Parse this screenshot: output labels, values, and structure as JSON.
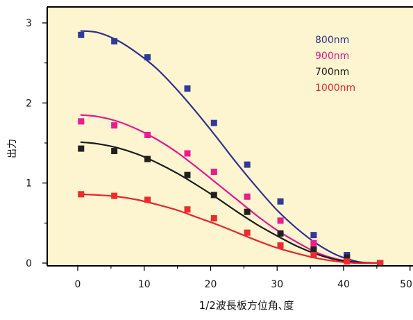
{
  "chart_data": {
    "type": "scatter",
    "xlabel": "1/2波長板方位角､度",
    "ylabel": "出力",
    "xlim": [
      -5,
      50
    ],
    "ylim": [
      -0.1,
      3.2
    ],
    "x_ticks": [
      0,
      10,
      20,
      30,
      40,
      50
    ],
    "y_ticks": [
      0,
      1,
      2,
      3
    ],
    "x_minor_ticks": [
      5,
      15,
      25,
      35,
      45
    ],
    "y_minor_ticks": [
      0.5,
      1.5,
      2.5
    ],
    "grid": false,
    "legend_position": "top-right",
    "background_color": "#fdf5cf",
    "x": [
      0.5,
      5.5,
      10.5,
      16.5,
      20.5,
      25.5,
      30.5,
      35.5,
      40.5,
      45.5
    ],
    "series": [
      {
        "name": "800nm",
        "color": "#2f2f8f",
        "marker_color": "#2f3a9a",
        "values": [
          2.85,
          2.77,
          2.57,
          2.18,
          1.75,
          1.23,
          0.77,
          0.35,
          0.1,
          0.0
        ],
        "fit": {
          "x": [
            0.5,
            3,
            6,
            9,
            12,
            15,
            18,
            21,
            24,
            27,
            30,
            33,
            36,
            39,
            42,
            44,
            45.5
          ],
          "y": [
            2.9,
            2.88,
            2.78,
            2.62,
            2.42,
            2.16,
            1.87,
            1.56,
            1.24,
            0.94,
            0.66,
            0.43,
            0.24,
            0.1,
            0.02,
            0.0,
            0.0
          ]
        }
      },
      {
        "name": "900nm",
        "color": "#e8158c",
        "marker_color": "#ec1b8e",
        "values": [
          1.77,
          1.72,
          1.6,
          1.37,
          1.14,
          0.83,
          0.53,
          0.25,
          0.07,
          0.0
        ],
        "fit": {
          "x": [
            0.5,
            3,
            6,
            9,
            12,
            15,
            18,
            21,
            24,
            27,
            30,
            33,
            36,
            39,
            42,
            45.5
          ],
          "y": [
            1.85,
            1.83,
            1.77,
            1.67,
            1.54,
            1.38,
            1.19,
            0.99,
            0.79,
            0.59,
            0.41,
            0.26,
            0.13,
            0.05,
            0.01,
            0.0
          ]
        }
      },
      {
        "name": "700nm",
        "color": "#1a1a1a",
        "marker_color": "#231f20",
        "values": [
          1.43,
          1.4,
          1.3,
          1.1,
          0.85,
          0.64,
          0.37,
          0.17,
          0.07,
          0.0
        ],
        "fit": {
          "x": [
            0.5,
            3,
            6,
            9,
            12,
            15,
            18,
            21,
            24,
            27,
            30,
            33,
            36,
            39,
            42,
            45.5
          ],
          "y": [
            1.51,
            1.49,
            1.44,
            1.36,
            1.25,
            1.12,
            0.97,
            0.81,
            0.64,
            0.48,
            0.34,
            0.21,
            0.11,
            0.04,
            0.01,
            0.0
          ]
        }
      },
      {
        "name": "1000nm",
        "color": "#e8242a",
        "marker_color": "#ee2a2f",
        "values": [
          0.86,
          0.84,
          0.79,
          0.67,
          0.56,
          0.38,
          0.22,
          0.1,
          0.02,
          0.0
        ],
        "fit": {
          "x": [
            0.5,
            3,
            6,
            9,
            12,
            15,
            18,
            21,
            24,
            27,
            30,
            33,
            36,
            39,
            42,
            45.5
          ],
          "y": [
            0.86,
            0.85,
            0.83,
            0.79,
            0.73,
            0.66,
            0.57,
            0.48,
            0.38,
            0.28,
            0.19,
            0.12,
            0.06,
            0.02,
            0.0,
            0.0
          ]
        }
      }
    ]
  }
}
